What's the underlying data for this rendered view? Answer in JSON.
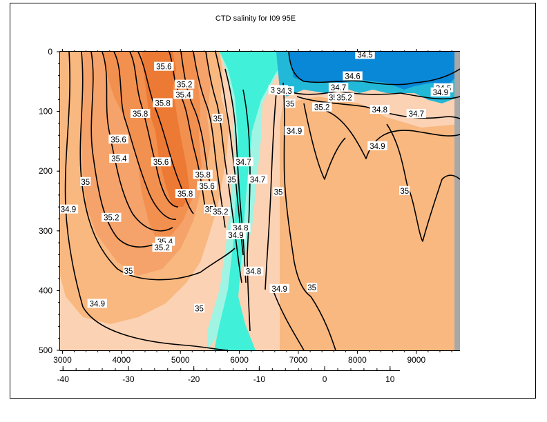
{
  "chart_data": {
    "type": "heatmap",
    "title": "CTD salinity for I09 95E",
    "x": {
      "ticks": [
        3000,
        4000,
        5000,
        6000,
        7000,
        8000,
        9000
      ],
      "range": [
        2960,
        9740
      ]
    },
    "x2": {
      "ticks": [
        -40,
        -30,
        -20,
        -10,
        0,
        10
      ],
      "range": [
        -40.5,
        11.5
      ]
    },
    "y": {
      "ticks": [
        0,
        100,
        200,
        300,
        400,
        500
      ],
      "range": [
        0,
        500
      ],
      "inverted": true
    },
    "grid": false,
    "colors": {
      "fresh_deep": "#0a88d8",
      "fresh_mid": "#22b8d8",
      "cyan": "#40f0d8",
      "mint": "#a0f4e4",
      "salmon_light": "#fcd2b4",
      "salmon": "#f8b880",
      "orange_mid": "#f5a36a",
      "orange": "#f29050",
      "orange_dark": "#ec7a34",
      "contour": "#000000"
    },
    "contour_labels": [
      {
        "text": "34.5",
        "x": 8130,
        "y": 5
      },
      {
        "text": "35.6",
        "x": 4720,
        "y": 25
      },
      {
        "text": "34.6",
        "x": 7920,
        "y": 41
      },
      {
        "text": "35.2",
        "x": 5070,
        "y": 55
      },
      {
        "text": "34.7",
        "x": 7680,
        "y": 60
      },
      {
        "text": "34.5",
        "x": 9460,
        "y": 61
      },
      {
        "text": "34.9",
        "x": 6660,
        "y": 64
      },
      {
        "text": "34.3",
        "x": 6760,
        "y": 66
      },
      {
        "text": "34.9",
        "x": 9410,
        "y": 68
      },
      {
        "text": "35.4",
        "x": 5050,
        "y": 72
      },
      {
        "text": "35",
        "x": 7590,
        "y": 77
      },
      {
        "text": "35.2",
        "x": 7780,
        "y": 77
      },
      {
        "text": "35.8",
        "x": 4700,
        "y": 86
      },
      {
        "text": "35",
        "x": 6860,
        "y": 87
      },
      {
        "text": "35.2",
        "x": 7400,
        "y": 93
      },
      {
        "text": "34.8",
        "x": 8380,
        "y": 97
      },
      {
        "text": "35.8",
        "x": 4320,
        "y": 104
      },
      {
        "text": "34.7",
        "x": 9000,
        "y": 104
      },
      {
        "text": "35",
        "x": 5630,
        "y": 112
      },
      {
        "text": "34.9",
        "x": 6930,
        "y": 133
      },
      {
        "text": "35.6",
        "x": 3950,
        "y": 147
      },
      {
        "text": "34.9",
        "x": 8340,
        "y": 158
      },
      {
        "text": "35.4",
        "x": 3960,
        "y": 179
      },
      {
        "text": "35.6",
        "x": 4670,
        "y": 185
      },
      {
        "text": "34.7",
        "x": 6070,
        "y": 185
      },
      {
        "text": "35.8",
        "x": 5380,
        "y": 206
      },
      {
        "text": "35",
        "x": 5870,
        "y": 214
      },
      {
        "text": "34.7",
        "x": 6310,
        "y": 214
      },
      {
        "text": "35.6",
        "x": 5450,
        "y": 225
      },
      {
        "text": "35",
        "x": 3390,
        "y": 218
      },
      {
        "text": "35.8",
        "x": 5080,
        "y": 238
      },
      {
        "text": "35",
        "x": 6660,
        "y": 235
      },
      {
        "text": "35",
        "x": 8800,
        "y": 233
      },
      {
        "text": "34.9",
        "x": 3100,
        "y": 264
      },
      {
        "text": "35",
        "x": 5490,
        "y": 264
      },
      {
        "text": "35.2",
        "x": 5680,
        "y": 268
      },
      {
        "text": "35.2",
        "x": 3830,
        "y": 278
      },
      {
        "text": "34.8",
        "x": 6020,
        "y": 295
      },
      {
        "text": "34.9",
        "x": 5940,
        "y": 307
      },
      {
        "text": "35.4",
        "x": 4740,
        "y": 318
      },
      {
        "text": "35.2",
        "x": 4690,
        "y": 328
      },
      {
        "text": "35",
        "x": 4120,
        "y": 367
      },
      {
        "text": "34.8",
        "x": 6240,
        "y": 368
      },
      {
        "text": "34.9",
        "x": 6680,
        "y": 397
      },
      {
        "text": "35",
        "x": 7230,
        "y": 395
      },
      {
        "text": "34.9",
        "x": 3590,
        "y": 422
      },
      {
        "text": "35",
        "x": 5320,
        "y": 430
      }
    ]
  }
}
